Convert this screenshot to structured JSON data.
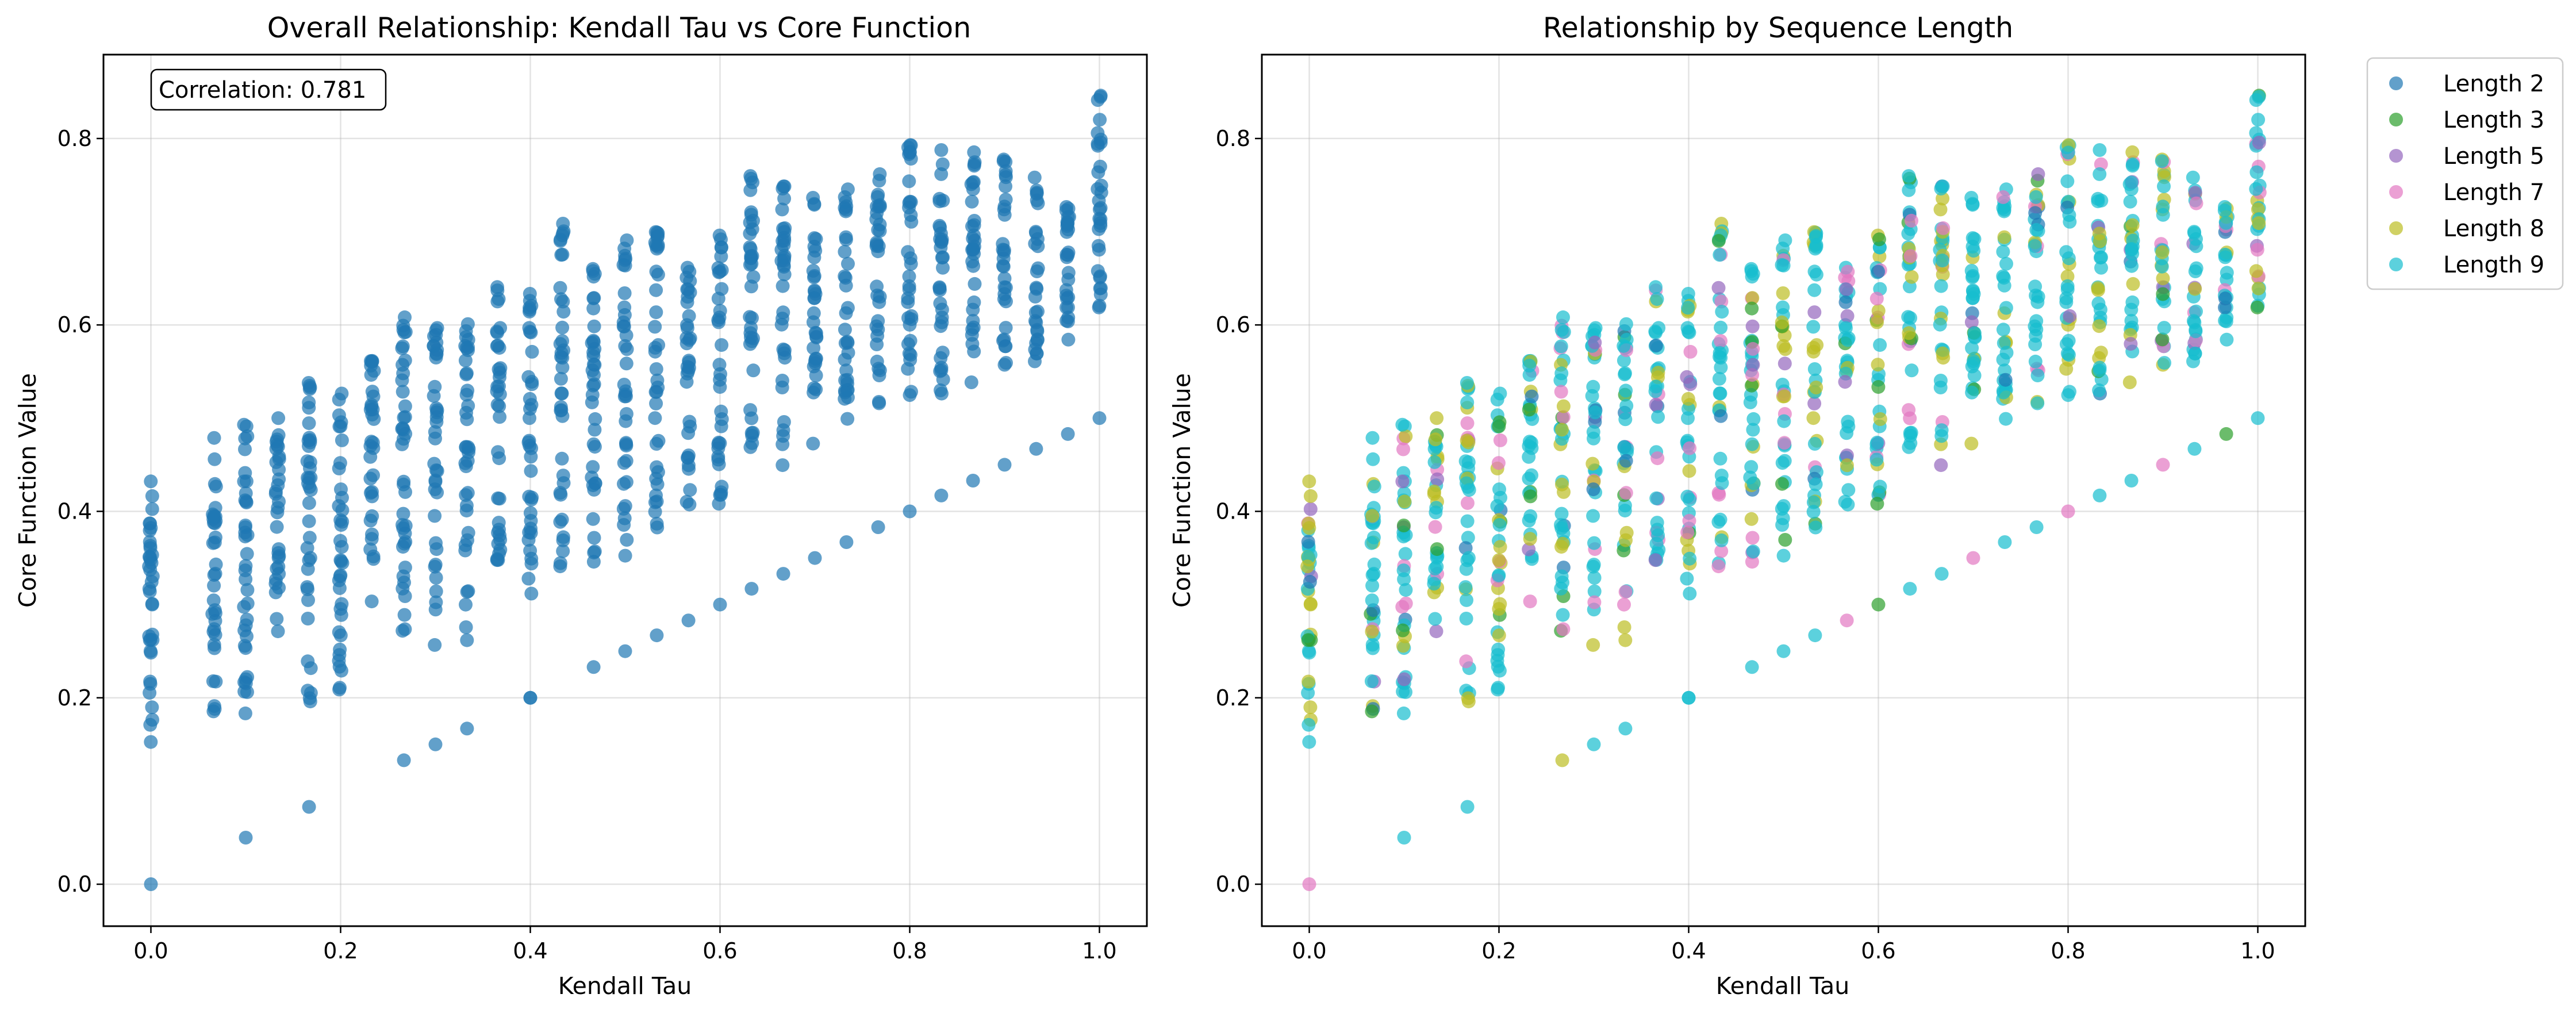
{
  "figure": {},
  "colors": {
    "overall": "#1f77b4",
    "Length 2": "#1f77b4",
    "Length 3": "#2ca02c",
    "Length 5": "#9467bd",
    "Length 7": "#e377c2",
    "Length 8": "#bcbd22",
    "Length 9": "#17becf"
  },
  "chart_data": [
    {
      "type": "scatter",
      "title": "Overall Relationship: Kendall Tau vs Core Function",
      "xlabel": "Kendall Tau",
      "ylabel": "Core Function Value",
      "xlim": [
        -0.05,
        1.05
      ],
      "ylim": [
        -0.045,
        0.89
      ],
      "xticks": [
        "0.0",
        "0.2",
        "0.4",
        "0.6",
        "0.8",
        "1.0"
      ],
      "yticks": [
        "0.0",
        "0.2",
        "0.4",
        "0.6",
        "0.8"
      ],
      "grid": true,
      "annotation": "Correlation: 0.781",
      "annotation_position": "top-left",
      "series": [
        {
          "color": "#1f77b4",
          "clusters": [
            {
              "x": 0.0,
              "ymin": 0.1,
              "ymax": 0.44
            },
            {
              "x": 0.0667,
              "ymin": 0.18,
              "ymax": 0.48
            },
            {
              "x": 0.1,
              "ymin": 0.16,
              "ymax": 0.5
            },
            {
              "x": 0.1333,
              "ymin": 0.26,
              "ymax": 0.52
            },
            {
              "x": 0.1667,
              "ymin": 0.18,
              "ymax": 0.54
            },
            {
              "x": 0.2,
              "ymin": 0.2,
              "ymax": 0.55
            },
            {
              "x": 0.2333,
              "ymin": 0.3,
              "ymax": 0.57
            },
            {
              "x": 0.2667,
              "ymin": 0.23,
              "ymax": 0.63
            },
            {
              "x": 0.3,
              "ymin": 0.25,
              "ymax": 0.6
            },
            {
              "x": 0.3333,
              "ymin": 0.26,
              "ymax": 0.61
            },
            {
              "x": 0.3667,
              "ymin": 0.34,
              "ymax": 0.67
            },
            {
              "x": 0.4,
              "ymin": 0.29,
              "ymax": 0.64
            },
            {
              "x": 0.4333,
              "ymin": 0.33,
              "ymax": 0.71
            },
            {
              "x": 0.4667,
              "ymin": 0.34,
              "ymax": 0.68
            },
            {
              "x": 0.5,
              "ymin": 0.35,
              "ymax": 0.7
            },
            {
              "x": 0.5333,
              "ymin": 0.37,
              "ymax": 0.71
            },
            {
              "x": 0.5667,
              "ymin": 0.39,
              "ymax": 0.68
            },
            {
              "x": 0.6,
              "ymin": 0.4,
              "ymax": 0.7
            },
            {
              "x": 0.6333,
              "ymin": 0.43,
              "ymax": 0.76
            },
            {
              "x": 0.6667,
              "ymin": 0.44,
              "ymax": 0.75
            },
            {
              "x": 0.7,
              "ymin": 0.47,
              "ymax": 0.74
            },
            {
              "x": 0.7333,
              "ymin": 0.48,
              "ymax": 0.75
            },
            {
              "x": 0.7667,
              "ymin": 0.49,
              "ymax": 0.77
            },
            {
              "x": 0.8,
              "ymin": 0.51,
              "ymax": 0.8
            },
            {
              "x": 0.8333,
              "ymin": 0.52,
              "ymax": 0.8
            },
            {
              "x": 0.8667,
              "ymin": 0.53,
              "ymax": 0.79
            },
            {
              "x": 0.9,
              "ymin": 0.55,
              "ymax": 0.78
            },
            {
              "x": 0.9333,
              "ymin": 0.56,
              "ymax": 0.76
            },
            {
              "x": 0.9667,
              "ymin": 0.58,
              "ymax": 0.74
            },
            {
              "x": 1.0,
              "ymin": 0.6,
              "ymax": 0.85
            }
          ],
          "lower_line": [
            [
              0.4,
              0.2
            ],
            [
              0.4667,
              0.233
            ],
            [
              0.5,
              0.25
            ],
            [
              0.5333,
              0.267
            ],
            [
              0.5667,
              0.283
            ],
            [
              0.6,
              0.3
            ],
            [
              0.6333,
              0.317
            ],
            [
              0.6667,
              0.333
            ],
            [
              0.7,
              0.35
            ],
            [
              0.7333,
              0.367
            ],
            [
              0.7667,
              0.383
            ],
            [
              0.8,
              0.4
            ],
            [
              0.8333,
              0.417
            ],
            [
              0.8667,
              0.433
            ],
            [
              0.9,
              0.45
            ],
            [
              0.9333,
              0.467
            ],
            [
              0.9667,
              0.483
            ],
            [
              1.0,
              0.5
            ]
          ],
          "outliers": [
            [
              0.0,
              0.0
            ],
            [
              0.1,
              0.05
            ],
            [
              0.1667,
              0.083
            ],
            [
              0.2667,
              0.133
            ],
            [
              0.3,
              0.15
            ],
            [
              0.3333,
              0.167
            ],
            [
              0.4,
              0.2
            ]
          ]
        }
      ]
    },
    {
      "type": "scatter",
      "title": "Relationship by Sequence Length",
      "xlabel": "Kendall Tau",
      "ylabel": "Core Function Value",
      "xlim": [
        -0.05,
        1.05
      ],
      "ylim": [
        -0.045,
        0.89
      ],
      "xticks": [
        "0.0",
        "0.2",
        "0.4",
        "0.6",
        "0.8",
        "1.0"
      ],
      "yticks": [
        "0.0",
        "0.2",
        "0.4",
        "0.6",
        "0.8"
      ],
      "grid": true,
      "legend_position": "outside-top-right",
      "series": [
        {
          "name": "Length 2",
          "color": "#1f77b4"
        },
        {
          "name": "Length 3",
          "color": "#2ca02c"
        },
        {
          "name": "Length 5",
          "color": "#9467bd"
        },
        {
          "name": "Length 7",
          "color": "#e377c2"
        },
        {
          "name": "Length 8",
          "color": "#bcbd22"
        },
        {
          "name": "Length 9",
          "color": "#17becf"
        }
      ]
    }
  ]
}
